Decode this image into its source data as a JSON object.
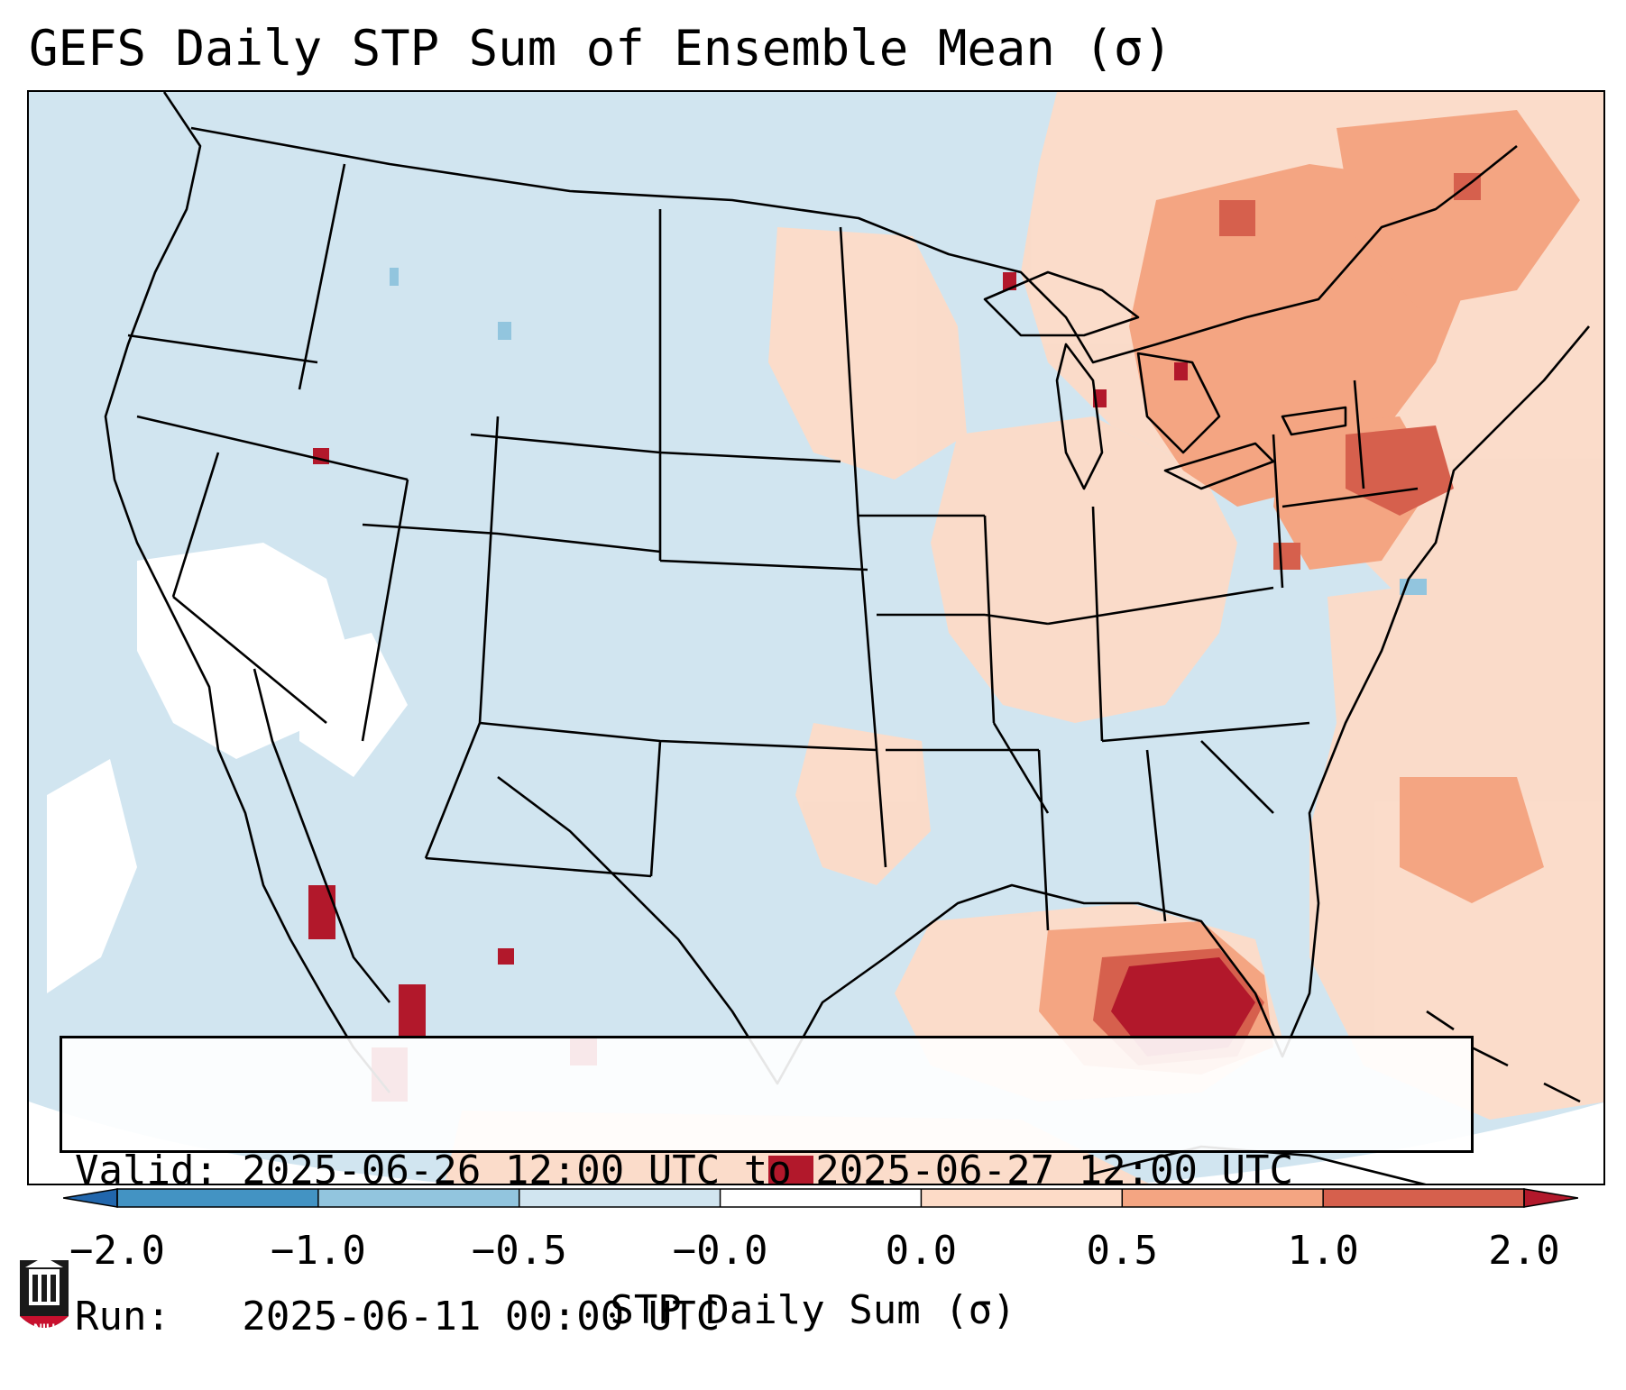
{
  "title": "GEFS Daily STP Sum of Ensemble Mean (σ)",
  "map": {
    "projection": "Lambert Conformal, CONUS",
    "ocean_color": "#d1e5f0",
    "anomaly_regions": [
      {
        "name": "Southeast Gulf / Florida",
        "category": "1.0 to 2.0"
      },
      {
        "name": "Great Lakes / Northeast",
        "category": "0.5 to 1.0"
      },
      {
        "name": "Western Atlantic",
        "category": "0.0 to 0.5"
      },
      {
        "name": "Mexico Sierra Madre",
        "category": "1.0 to 2.0"
      },
      {
        "name": "Southwest / Baja",
        "category": "-0.0 to 0.0"
      }
    ]
  },
  "info": {
    "valid_line": "Valid: 2025-06-26 12:00 UTC to 2025-06-27 12:00 UTC",
    "run_line": "Run:   2025-06-11 00:00 UTC"
  },
  "colorbar": {
    "label": "STP Daily Sum (σ)",
    "ticks": [
      "−2.0",
      "−1.0",
      "−0.5",
      "−0.0",
      "0.0",
      "0.5",
      "1.0",
      "2.0"
    ],
    "colors": [
      "#4393c3",
      "#92c5de",
      "#d1e5f0",
      "#ffffff",
      "#fddbc7",
      "#f4a582",
      "#d6604d"
    ],
    "under_color": "#2166ac",
    "over_color": "#b2182b"
  },
  "logo": {
    "text": "NIU"
  }
}
